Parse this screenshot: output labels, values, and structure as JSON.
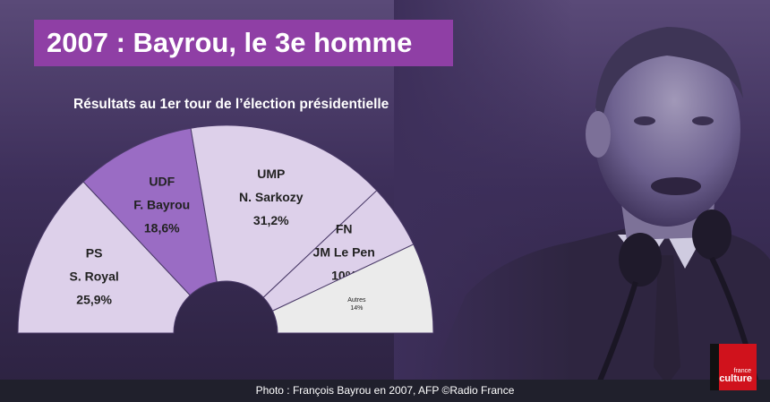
{
  "title": "2007 : Bayrou, le 3e homme",
  "caption": "Photo : François Bayrou en 2007, AFP   ©Radio France",
  "logo": {
    "line1": "france",
    "line2": "culture",
    "color": "#d0121c"
  },
  "colors": {
    "title_bg": "#8f3fa5",
    "background": "#3d2f5a",
    "footer": "#20202c"
  },
  "chart_data": {
    "type": "pie",
    "variant": "half-donut",
    "title": "Résultats au 1er tour de l’élection présidentielle",
    "slices": [
      {
        "party": "PS",
        "candidate": "S. Royal",
        "value": 25.9,
        "label": "25,9%",
        "color": "#ddd0ea"
      },
      {
        "party": "UDF",
        "candidate": "F. Bayrou",
        "value": 18.6,
        "label": "18,6%",
        "color": "#9a6cc4"
      },
      {
        "party": "UMP",
        "candidate": "N. Sarkozy",
        "value": 31.2,
        "label": "31,2%",
        "color": "#ddd0ea"
      },
      {
        "party": "FN",
        "candidate": "JM Le Pen",
        "value": 10,
        "label": "10%",
        "color": "#ddd0ea"
      },
      {
        "party": "Autres",
        "candidate": "",
        "value": 14,
        "label": "14%",
        "color": "#ebebeb"
      }
    ]
  }
}
